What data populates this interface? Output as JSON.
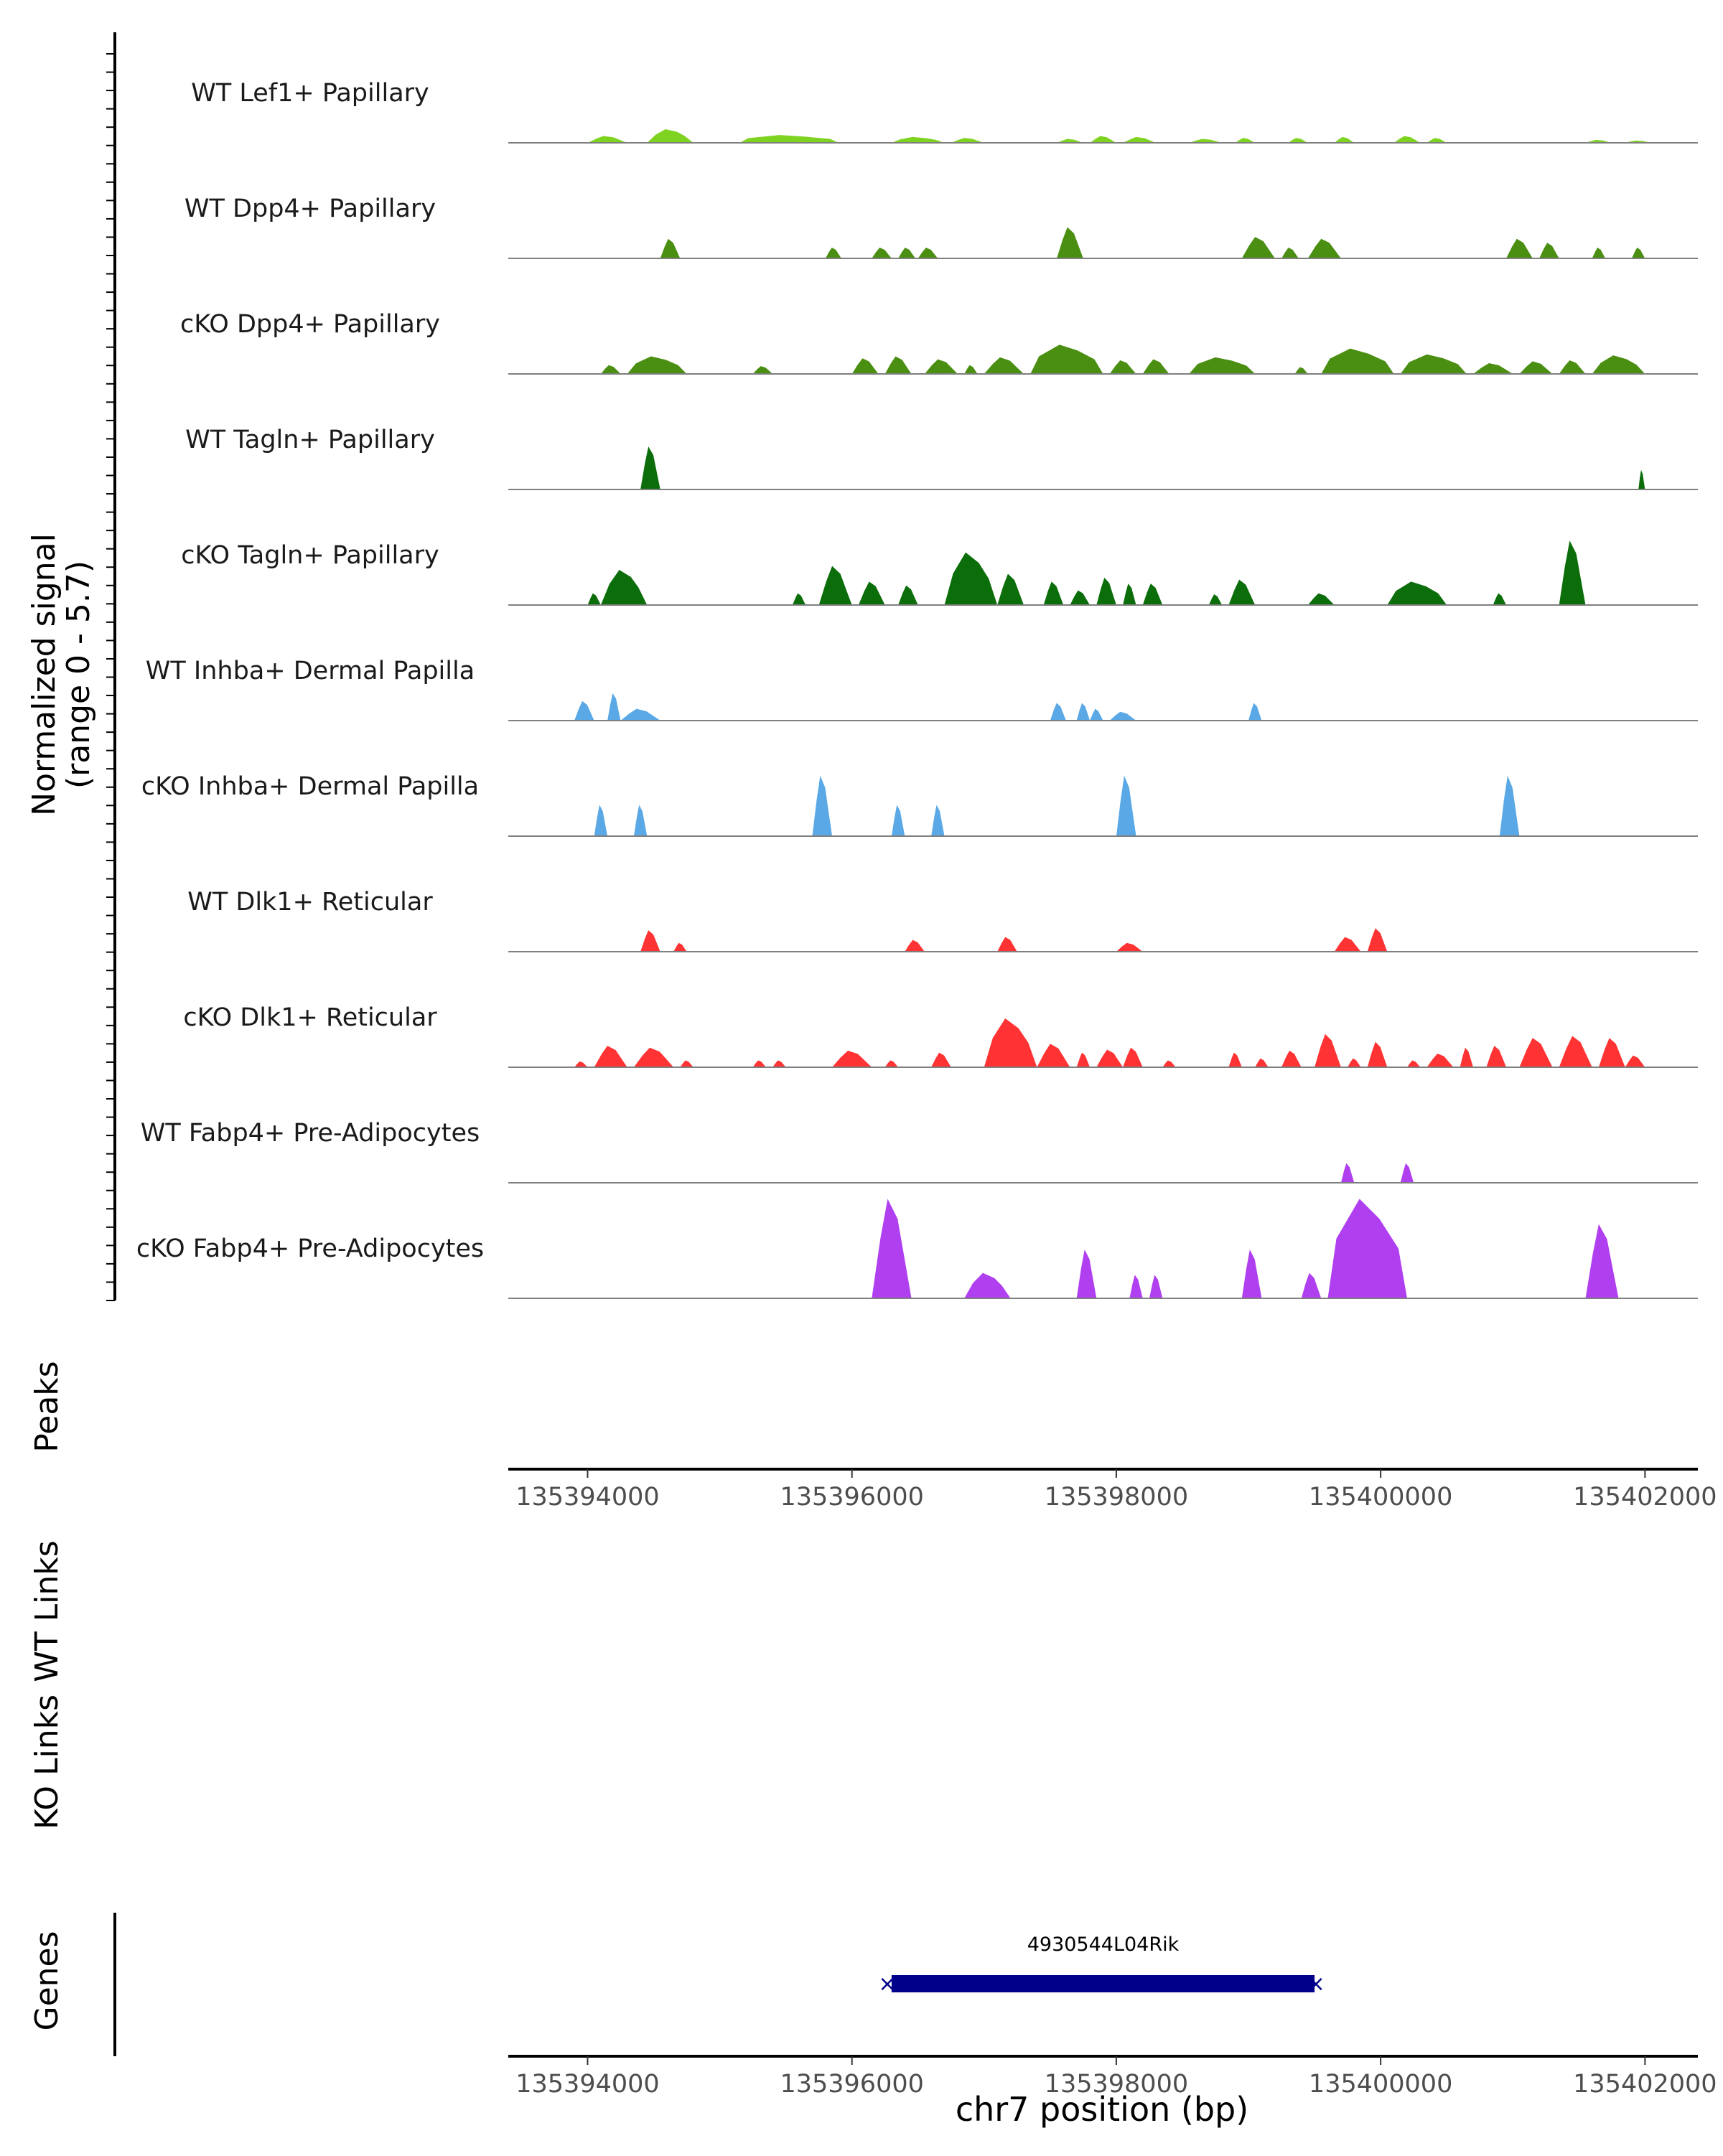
{
  "chart_data": {
    "type": "area",
    "title": "",
    "y_axis_label_line1": "Normalized signal",
    "y_axis_label_line2": "(range 0 - 5.7)",
    "y_range": [
      0,
      5.7
    ],
    "x_range": [
      135393400,
      135402400
    ],
    "xlabel": "chr7 position (bp)",
    "x_ticks": [
      135394000,
      135396000,
      135398000,
      135400000,
      135402000
    ],
    "x_tick_labels": [
      "135394000",
      "135396000",
      "135398000",
      "135400000",
      "135402000"
    ],
    "tracks": [
      {
        "name": "WT Lef1+ Papillary",
        "color": "#7ed321",
        "peaks": [
          [
            135394000,
            135394300,
            0.35
          ],
          [
            135394450,
            135394800,
            0.7
          ],
          [
            135395150,
            135395900,
            0.4
          ],
          [
            135396300,
            135396700,
            0.3
          ],
          [
            135396750,
            135397000,
            0.25
          ],
          [
            135397550,
            135397750,
            0.2
          ],
          [
            135397800,
            135398000,
            0.35
          ],
          [
            135398050,
            135398300,
            0.3
          ],
          [
            135398550,
            135398800,
            0.2
          ],
          [
            135398900,
            135399050,
            0.25
          ],
          [
            135399300,
            135399450,
            0.25
          ],
          [
            135399650,
            135399800,
            0.3
          ],
          [
            135400100,
            135400300,
            0.35
          ],
          [
            135400350,
            135400500,
            0.25
          ],
          [
            135401550,
            135401750,
            0.15
          ],
          [
            135401850,
            135402050,
            0.12
          ]
        ]
      },
      {
        "name": "WT Dpp4+ Papillary",
        "color": "#4a8f12",
        "peaks": [
          [
            135394550,
            135394700,
            1.0
          ],
          [
            135395800,
            135395920,
            0.55
          ],
          [
            135396150,
            135396300,
            0.55
          ],
          [
            135396350,
            135396480,
            0.55
          ],
          [
            135396500,
            135396650,
            0.55
          ],
          [
            135397550,
            135397750,
            1.6
          ],
          [
            135398950,
            135399200,
            1.1
          ],
          [
            135399250,
            135399380,
            0.55
          ],
          [
            135399450,
            135399700,
            1.0
          ],
          [
            135400950,
            135401150,
            1.0
          ],
          [
            135401200,
            135401350,
            0.8
          ],
          [
            135401600,
            135401700,
            0.55
          ],
          [
            135401900,
            135402000,
            0.55
          ]
        ]
      },
      {
        "name": "cKO Dpp4+ Papillary",
        "color": "#4a8f12",
        "peaks": [
          [
            135394100,
            135394250,
            0.45
          ],
          [
            135394300,
            135394750,
            0.9
          ],
          [
            135395250,
            135395400,
            0.4
          ],
          [
            135396000,
            135396200,
            0.8
          ],
          [
            135396250,
            135396450,
            0.9
          ],
          [
            135396550,
            135396800,
            0.75
          ],
          [
            135396850,
            135396950,
            0.45
          ],
          [
            135397000,
            135397300,
            0.85
          ],
          [
            135397350,
            135397900,
            1.5
          ],
          [
            135397950,
            135398150,
            0.7
          ],
          [
            135398200,
            135398400,
            0.75
          ],
          [
            135398550,
            135399050,
            0.85
          ],
          [
            135399350,
            135399450,
            0.35
          ],
          [
            135399550,
            135400100,
            1.3
          ],
          [
            135400150,
            135400650,
            1.0
          ],
          [
            135400700,
            135401000,
            0.55
          ],
          [
            135401050,
            135401300,
            0.65
          ],
          [
            135401350,
            135401550,
            0.7
          ],
          [
            135401600,
            135402000,
            0.95
          ]
        ]
      },
      {
        "name": "WT Tagln+ Papillary",
        "color": "#0b6e0b",
        "peaks": [
          [
            135394400,
            135394550,
            2.2
          ],
          [
            135401950,
            135402000,
            1.0
          ]
        ]
      },
      {
        "name": "cKO Tagln+ Papillary",
        "color": "#0b6e0b",
        "peaks": [
          [
            135394000,
            135394100,
            0.6
          ],
          [
            135394100,
            135394450,
            1.8
          ],
          [
            135395550,
            135395650,
            0.6
          ],
          [
            135395750,
            135396000,
            2.0
          ],
          [
            135396050,
            135396250,
            1.2
          ],
          [
            135396350,
            135396500,
            1.0
          ],
          [
            135396700,
            135397100,
            2.7
          ],
          [
            135397100,
            135397300,
            1.6
          ],
          [
            135397450,
            135397600,
            1.2
          ],
          [
            135397650,
            135397800,
            0.75
          ],
          [
            135397850,
            135398000,
            1.4
          ],
          [
            135398050,
            135398150,
            1.1
          ],
          [
            135398200,
            135398350,
            1.1
          ],
          [
            135398700,
            135398800,
            0.55
          ],
          [
            135398850,
            135399050,
            1.3
          ],
          [
            135399450,
            135399650,
            0.6
          ],
          [
            135400050,
            135400500,
            1.2
          ],
          [
            135400850,
            135400950,
            0.6
          ],
          [
            135401350,
            135401550,
            3.3
          ]
        ]
      },
      {
        "name": "WT Inhba+ Dermal Papilla",
        "color": "#5aa9e6",
        "peaks": [
          [
            135393900,
            135394050,
            1.0
          ],
          [
            135394150,
            135394250,
            1.4
          ],
          [
            135394250,
            135394550,
            0.6
          ],
          [
            135397500,
            135397620,
            0.9
          ],
          [
            135397700,
            135397800,
            0.9
          ],
          [
            135397800,
            135397900,
            0.6
          ],
          [
            135397950,
            135398150,
            0.45
          ],
          [
            135399000,
            135399100,
            0.9
          ]
        ]
      },
      {
        "name": "cKO Inhba+ Dermal Papilla",
        "color": "#5aa9e6",
        "peaks": [
          [
            135394050,
            135394150,
            1.6
          ],
          [
            135394350,
            135394450,
            1.6
          ],
          [
            135395700,
            135395850,
            3.1
          ],
          [
            135396300,
            135396400,
            1.6
          ],
          [
            135396600,
            135396700,
            1.6
          ],
          [
            135398000,
            135398150,
            3.1
          ],
          [
            135400900,
            135401050,
            3.1
          ]
        ]
      },
      {
        "name": "WT Dlk1+ Reticular",
        "color": "#ff3333",
        "peaks": [
          [
            135394400,
            135394550,
            1.1
          ],
          [
            135394650,
            135394750,
            0.45
          ],
          [
            135396400,
            135396550,
            0.6
          ],
          [
            135397100,
            135397250,
            0.75
          ],
          [
            135398000,
            135398200,
            0.45
          ],
          [
            135399650,
            135399850,
            0.75
          ],
          [
            135399900,
            135400050,
            1.2
          ]
        ]
      },
      {
        "name": "cKO Dlk1+ Reticular",
        "color": "#ff3333",
        "peaks": [
          [
            135393900,
            135394000,
            0.3
          ],
          [
            135394050,
            135394300,
            1.1
          ],
          [
            135394350,
            135394650,
            1.0
          ],
          [
            135394700,
            135394800,
            0.35
          ],
          [
            135395250,
            135395350,
            0.35
          ],
          [
            135395400,
            135395500,
            0.35
          ],
          [
            135395850,
            135396150,
            0.85
          ],
          [
            135396250,
            135396350,
            0.35
          ],
          [
            135396600,
            135396750,
            0.75
          ],
          [
            135397000,
            135397400,
            2.5
          ],
          [
            135397400,
            135397650,
            1.2
          ],
          [
            135397700,
            135397800,
            0.75
          ],
          [
            135397850,
            135398050,
            0.9
          ],
          [
            135398050,
            135398200,
            1.0
          ],
          [
            135398350,
            135398450,
            0.35
          ],
          [
            135398850,
            135398950,
            0.75
          ],
          [
            135399050,
            135399150,
            0.45
          ],
          [
            135399250,
            135399400,
            0.85
          ],
          [
            135399500,
            135399700,
            1.7
          ],
          [
            135399750,
            135399850,
            0.45
          ],
          [
            135399900,
            135400050,
            1.3
          ],
          [
            135400200,
            135400300,
            0.35
          ],
          [
            135400350,
            135400550,
            0.7
          ],
          [
            135400600,
            135400700,
            1.0
          ],
          [
            135400800,
            135400950,
            1.1
          ],
          [
            135401050,
            135401300,
            1.5
          ],
          [
            135401350,
            135401600,
            1.6
          ],
          [
            135401650,
            135401850,
            1.5
          ],
          [
            135401850,
            135402000,
            0.6
          ]
        ]
      },
      {
        "name": "WT Fabp4+ Pre-Adipocytes",
        "color": "#b03ff0",
        "peaks": [
          [
            135399700,
            135399800,
            1.0
          ],
          [
            135400150,
            135400250,
            1.0
          ]
        ]
      },
      {
        "name": "cKO Fabp4+ Pre-Adipocytes",
        "color": "#b03ff0",
        "peaks": [
          [
            135396150,
            135396450,
            5.1
          ],
          [
            135396850,
            135397200,
            1.3
          ],
          [
            135397700,
            135397850,
            2.5
          ],
          [
            135398100,
            135398200,
            1.2
          ],
          [
            135398250,
            135398350,
            1.2
          ],
          [
            135398950,
            135399100,
            2.5
          ],
          [
            135399400,
            135399550,
            1.3
          ],
          [
            135399600,
            135400200,
            5.1
          ],
          [
            135401550,
            135401800,
            3.8
          ]
        ]
      }
    ],
    "peaks_track": {
      "label": "Peaks",
      "regions": []
    },
    "links_tracks": [
      {
        "label": "WT Links",
        "links": []
      },
      {
        "label": "KO Links",
        "links": []
      }
    ],
    "genes_track": {
      "label": "Genes",
      "genes": [
        {
          "name": "4930544L04Rik",
          "start": 135396300,
          "end": 135399500,
          "strand": "-",
          "color": "#00008b"
        }
      ]
    }
  }
}
